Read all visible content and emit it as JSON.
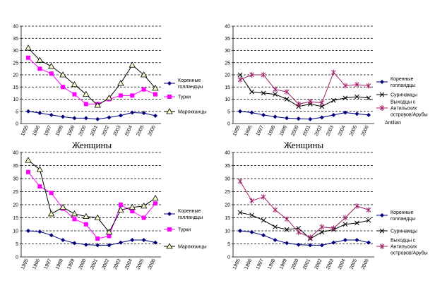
{
  "chart_data": [
    {
      "type": "line",
      "categories": [
        "1995",
        "1996",
        "1997",
        "1998",
        "1999",
        "2000",
        "2001",
        "2002",
        "2003",
        "2004",
        "2005",
        "2006"
      ],
      "ylim": [
        0,
        40
      ],
      "yticks": [
        0,
        5,
        10,
        15,
        20,
        25,
        30,
        35,
        40
      ],
      "grid": true,
      "series": [
        {
          "name": "Коренные голландцы",
          "color": "#000080",
          "marker": "diamond",
          "values": [
            5,
            4.3,
            3.5,
            2.8,
            2.2,
            2.2,
            1.8,
            2.5,
            3.3,
            4.5,
            4.3,
            3.2
          ]
        },
        {
          "name": "Турки",
          "color": "#ff00ff",
          "marker": "square",
          "values": [
            27,
            22.5,
            20.5,
            15,
            12,
            8,
            8,
            10,
            11.5,
            11.5,
            14,
            12
          ]
        },
        {
          "name": "Марокканцы",
          "color": "#000000",
          "marker": "triangle",
          "values": [
            31,
            26,
            23.5,
            20,
            16,
            12,
            7.5,
            10.5,
            16.5,
            24,
            20,
            14.5
          ]
        }
      ]
    },
    {
      "type": "line",
      "categories": [
        "1995",
        "1996",
        "1997",
        "1998",
        "1999",
        "2000",
        "2001",
        "2002",
        "2003",
        "2004",
        "2005",
        "2006"
      ],
      "ylim": [
        0,
        40
      ],
      "yticks": [
        0,
        5,
        10,
        15,
        20,
        25,
        30,
        35,
        40
      ],
      "grid": true,
      "annotation": "Antilian",
      "series": [
        {
          "name": "Коренные голландцы",
          "color": "#000080",
          "marker": "diamond",
          "values": [
            5,
            4.5,
            3.5,
            2.8,
            2.2,
            2,
            1.8,
            2.5,
            3.5,
            4.5,
            4,
            3.5
          ]
        },
        {
          "name": "Суринамцы",
          "color": "#000000",
          "marker": "x",
          "values": [
            20,
            13,
            12.5,
            12,
            10,
            7,
            8,
            7,
            9.5,
            10.5,
            11,
            10.5
          ]
        },
        {
          "name": "Выходцы с Антильских островов/Арубы",
          "color": "#a0206a",
          "marker": "star",
          "values": [
            18,
            20,
            20,
            14,
            13,
            8,
            9,
            8.5,
            21,
            15.5,
            16,
            15.5
          ]
        }
      ]
    },
    {
      "type": "line",
      "title": "Женщины",
      "categories": [
        "1995",
        "1996",
        "1997",
        "1998",
        "1999",
        "2000",
        "2001",
        "2002",
        "2003",
        "2004",
        "2005",
        "2006"
      ],
      "ylim": [
        0,
        40
      ],
      "yticks": [
        0,
        5,
        10,
        15,
        20,
        25,
        30,
        35,
        40
      ],
      "grid": true,
      "series": [
        {
          "name": "Коренные голландцы",
          "color": "#000080",
          "marker": "diamond",
          "values": [
            10,
            9.7,
            8.3,
            6.5,
            5.3,
            4.7,
            4.5,
            4.5,
            5.5,
            6.5,
            6.5,
            5.5
          ]
        },
        {
          "name": "Турки",
          "color": "#ff00ff",
          "marker": "square",
          "values": [
            32.5,
            27,
            24.5,
            18.5,
            14.5,
            12.5,
            7,
            8,
            20,
            17.5,
            15,
            20.5
          ]
        },
        {
          "name": "Марокканцы",
          "color": "#000000",
          "marker": "triangle",
          "values": [
            37,
            33.5,
            16.5,
            19,
            16.5,
            15.5,
            15,
            9.5,
            18,
            19,
            19.5,
            22.5
          ]
        }
      ]
    },
    {
      "type": "line",
      "title": "Женщины",
      "categories": [
        "1995",
        "1996",
        "1997",
        "1998",
        "1999",
        "2000",
        "2001",
        "2002",
        "2003",
        "2004",
        "2005",
        "2006"
      ],
      "ylim": [
        0,
        40
      ],
      "yticks": [
        0,
        5,
        10,
        15,
        20,
        25,
        30,
        35,
        40
      ],
      "grid": true,
      "series": [
        {
          "name": "Коренные голландцы",
          "color": "#000080",
          "marker": "diamond",
          "values": [
            10,
            9.5,
            8.3,
            6.5,
            5.3,
            4.7,
            4.5,
            4.5,
            5.5,
            6.5,
            6.5,
            5.5
          ]
        },
        {
          "name": "Суринамцы",
          "color": "#000000",
          "marker": "x",
          "values": [
            17,
            16,
            14,
            11.5,
            10.5,
            11,
            7,
            9.5,
            10.5,
            12.5,
            13,
            14
          ]
        },
        {
          "name": "Выходцы с Антильских островов/Арубы",
          "color": "#a0206a",
          "marker": "star",
          "values": [
            29,
            21.5,
            23,
            18,
            14.5,
            9.5,
            7.5,
            11.5,
            11,
            15,
            19.5,
            18
          ]
        }
      ]
    }
  ]
}
